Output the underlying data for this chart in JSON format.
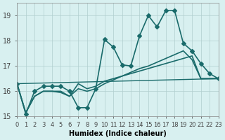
{
  "xlabel": "Humidex (Indice chaleur)",
  "ylabel": "",
  "background_color": "#d8f0f0",
  "grid_color": "#b0cece",
  "line_color": "#1a6b6b",
  "xlim": [
    0,
    23
  ],
  "ylim": [
    15,
    19.5
  ],
  "yticks": [
    15,
    16,
    17,
    18,
    19
  ],
  "xticks": [
    0,
    1,
    2,
    3,
    4,
    5,
    6,
    7,
    8,
    9,
    10,
    11,
    12,
    13,
    14,
    15,
    16,
    17,
    18,
    19,
    20,
    21,
    22,
    23
  ],
  "series": [
    {
      "x": [
        0,
        1,
        2,
        3,
        4,
        5,
        6,
        7,
        8,
        9,
        10,
        11,
        12,
        13,
        14,
        15,
        16,
        17,
        18,
        19,
        20,
        21,
        22,
        23
      ],
      "y": [
        16.3,
        15.1,
        16.0,
        16.2,
        16.2,
        16.2,
        16.0,
        15.35,
        15.35,
        16.1,
        18.05,
        17.75,
        17.05,
        17.0,
        18.2,
        19.0,
        18.55,
        19.2,
        19.2,
        17.9,
        17.6,
        17.1,
        16.7,
        16.5
      ],
      "marker": "D",
      "markersize": 3,
      "linewidth": 1.2
    },
    {
      "x": [
        0,
        1,
        2,
        3,
        4,
        5,
        6,
        7,
        8,
        9,
        10,
        11,
        12,
        13,
        14,
        15,
        16,
        17,
        18,
        19,
        20,
        21,
        22,
        23
      ],
      "y": [
        16.3,
        15.15,
        15.8,
        16.0,
        16.0,
        16.0,
        15.8,
        16.3,
        16.1,
        16.2,
        16.4,
        16.5,
        16.6,
        16.7,
        16.8,
        16.9,
        17.0,
        17.1,
        17.2,
        17.3,
        17.4,
        16.5,
        16.5,
        16.5
      ],
      "marker": null,
      "markersize": 0,
      "linewidth": 1.2
    },
    {
      "x": [
        0,
        1,
        2,
        3,
        4,
        5,
        6,
        7,
        8,
        9,
        10,
        11,
        12,
        13,
        14,
        15,
        16,
        17,
        18,
        19,
        20,
        21,
        22,
        23
      ],
      "y": [
        16.3,
        15.15,
        15.8,
        16.0,
        16.0,
        15.95,
        15.8,
        16.1,
        16.0,
        16.1,
        16.3,
        16.45,
        16.6,
        16.75,
        16.9,
        17.0,
        17.15,
        17.3,
        17.45,
        17.6,
        17.25,
        16.5,
        16.5,
        16.5
      ],
      "marker": null,
      "markersize": 0,
      "linewidth": 1.2
    },
    {
      "x": [
        0,
        23
      ],
      "y": [
        16.3,
        16.5
      ],
      "marker": null,
      "markersize": 0,
      "linewidth": 1.0
    }
  ]
}
